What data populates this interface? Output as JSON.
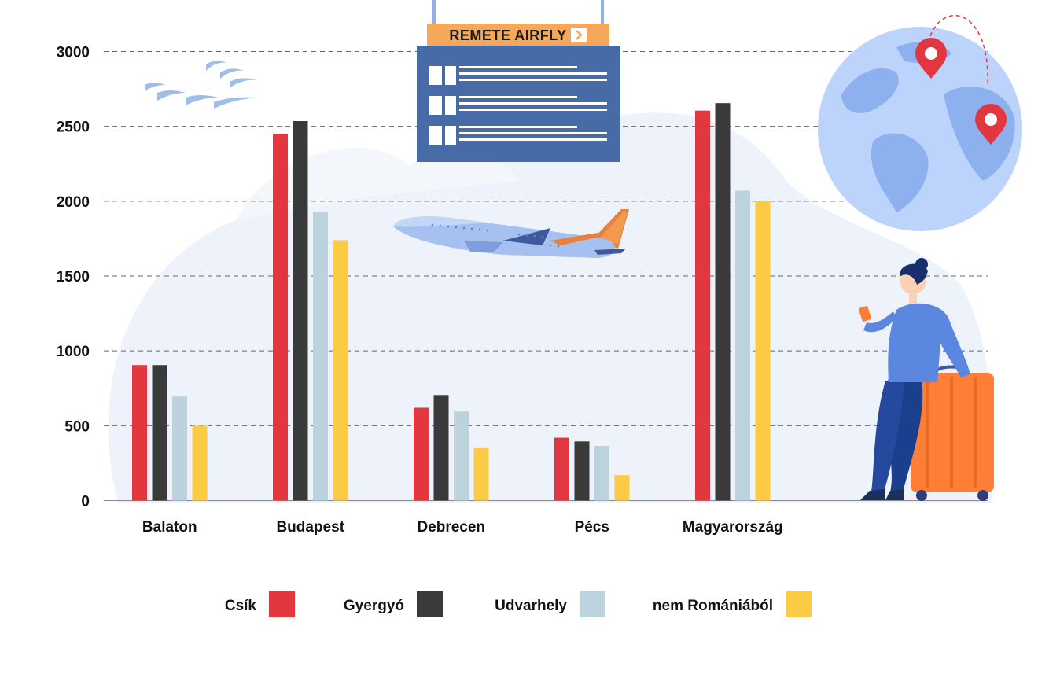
{
  "chart_data": {
    "type": "bar",
    "title": "",
    "xlabel": "",
    "ylabel": "",
    "ylim": [
      0,
      3000
    ],
    "yticks": [
      0,
      500,
      1000,
      1500,
      2000,
      2500,
      3000
    ],
    "grid": true,
    "legend_position": "bottom",
    "categories": [
      "Balaton",
      "Budapest",
      "Debrecen",
      "Pécs",
      "Magyarország"
    ],
    "series": [
      {
        "name": "Csík",
        "color": "#e3373f",
        "values": [
          905,
          2450,
          620,
          420,
          2605
        ]
      },
      {
        "name": "Gyergyó",
        "color": "#3a3a3a",
        "values": [
          905,
          2535,
          705,
          395,
          2655
        ]
      },
      {
        "name": "Udvarhely",
        "color": "#bcd2dc",
        "values": [
          695,
          1930,
          595,
          365,
          2070
        ]
      },
      {
        "name": "nem Romániából",
        "color": "#fccb46",
        "values": [
          500,
          1740,
          350,
          170,
          2000
        ]
      }
    ]
  },
  "decor": {
    "board_title": "REMETE AIRFLY",
    "icons": [
      "departure-board-icon",
      "airplane-icon",
      "globe-icon",
      "location-pin-icon",
      "traveler-icon",
      "suitcase-icon",
      "birds-icon"
    ]
  }
}
